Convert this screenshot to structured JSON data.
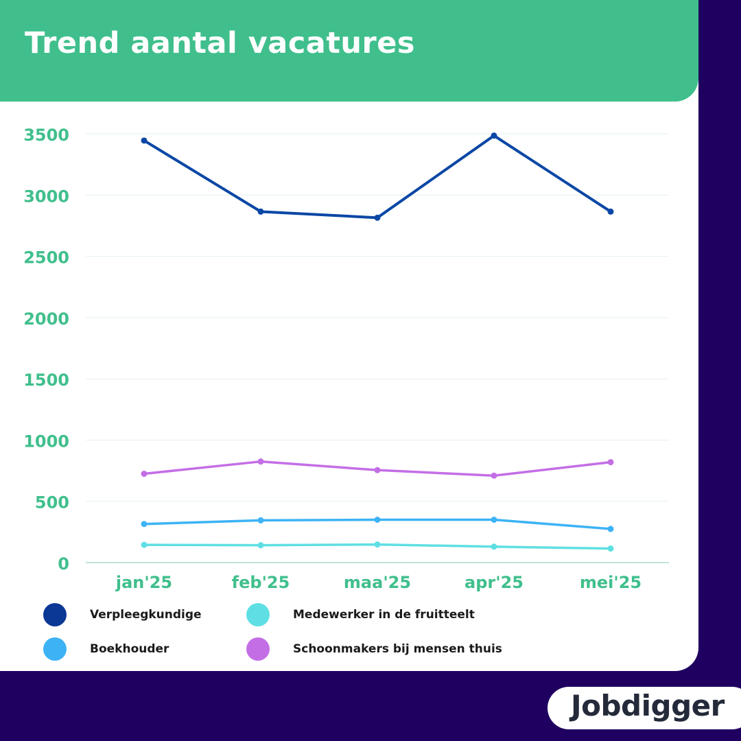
{
  "header": {
    "title": "Trend aantal vacatures"
  },
  "colors": {
    "background": "#1f0060",
    "header_green": "#40bf8c",
    "axis_green": "#40bf8c",
    "grid": "#e3f2ee"
  },
  "chart_data": {
    "type": "line",
    "title": "Trend aantal vacatures",
    "xlabel": "",
    "ylabel": "",
    "categories": [
      "jan'25",
      "feb'25",
      "maa'25",
      "apr'25",
      "mei'25"
    ],
    "ylim": [
      0,
      3500
    ],
    "yticks": [
      "0",
      "500",
      "1000",
      "1500",
      "2000",
      "2500",
      "3000",
      "3500"
    ],
    "grid": true,
    "legend_position": "bottom",
    "series": [
      {
        "name": "Verpleegkundige",
        "color": "#0b47a5",
        "values": [
          3445,
          2865,
          2815,
          3485,
          2865
        ]
      },
      {
        "name": "Boekhouder",
        "color": "#3db3f5",
        "values": [
          315,
          345,
          350,
          350,
          275
        ]
      },
      {
        "name": "Medewerker in de fruitteelt",
        "color": "#5fdfe3",
        "values": [
          145,
          142,
          148,
          130,
          115
        ]
      },
      {
        "name": "Schoonmakers bij mensen thuis",
        "color": "#c46ee6",
        "values": [
          725,
          825,
          755,
          710,
          820
        ]
      }
    ]
  },
  "legend": {
    "items": [
      {
        "label": "Verpleegkundige",
        "color": "#0b3795"
      },
      {
        "label": "Medewerker in de fruitteelt",
        "color": "#5fdfe3"
      },
      {
        "label": "Boekhouder",
        "color": "#3db3f5"
      },
      {
        "label": "Schoonmakers bij mensen thuis",
        "color": "#c46ee6"
      }
    ]
  },
  "logo": {
    "text": "Jobdigger"
  }
}
